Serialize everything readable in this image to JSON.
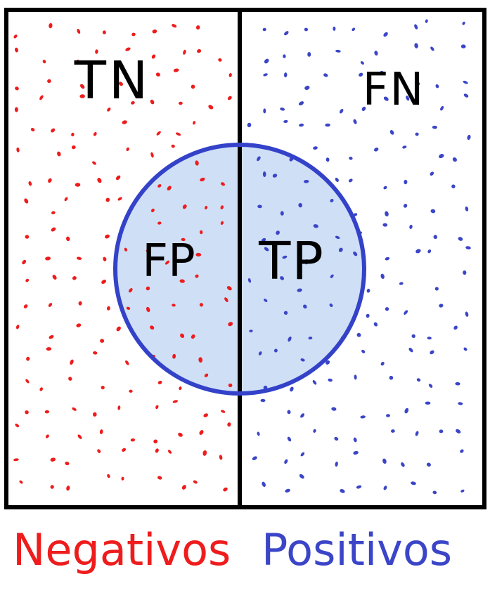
{
  "diagram": {
    "regions": {
      "true_negative": "TN",
      "false_negative": "FN",
      "false_positive": "FP",
      "true_positive": "TP"
    },
    "classes": {
      "negatives": "Negativos",
      "positives": "Positivos"
    },
    "colors": {
      "negative": "#ee1c1c",
      "positive": "#3b45c8",
      "circle_stroke": "#3342c8",
      "circle_fill": "#cfdff6",
      "frame": "#000000"
    }
  }
}
